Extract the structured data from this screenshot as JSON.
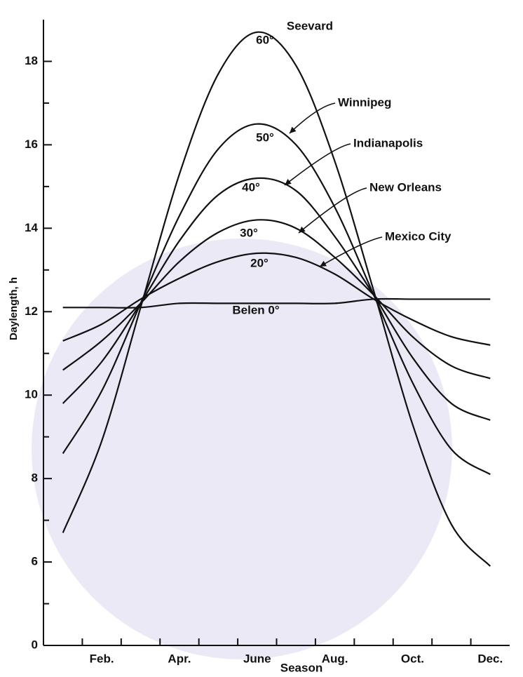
{
  "chart_data": {
    "type": "line",
    "x_label": "Season",
    "y_label": "Daylength, h",
    "categories": [
      null,
      "Feb.",
      null,
      "Apr.",
      null,
      "June",
      null,
      "Aug.",
      null,
      "Oct.",
      null,
      "Dec."
    ],
    "ylim": [
      4,
      19
    ],
    "yticks": [
      6,
      8,
      10,
      12,
      14,
      16,
      18
    ],
    "yminorticks": [
      5,
      7,
      9,
      11,
      13,
      15,
      17
    ],
    "axis_origin_label": "0",
    "series": [
      {
        "name": "60°",
        "city": "Seevard",
        "color": "#111111",
        "values": [
          6.7,
          8.9,
          12.1,
          15.3,
          17.7,
          18.7,
          17.9,
          15.6,
          12.5,
          9.3,
          6.9,
          5.9
        ]
      },
      {
        "name": "50°",
        "city": "Winnipeg",
        "color": "#111111",
        "values": [
          8.6,
          10.1,
          12.2,
          14.3,
          15.9,
          16.5,
          16.0,
          14.5,
          12.4,
          10.3,
          8.7,
          8.1
        ]
      },
      {
        "name": "40°",
        "city": "Indianapolis",
        "color": "#111111",
        "values": [
          9.8,
          10.8,
          12.2,
          13.7,
          14.8,
          15.2,
          14.9,
          13.8,
          12.4,
          10.9,
          9.8,
          9.4
        ]
      },
      {
        "name": "30°",
        "city": "New Orleans",
        "color": "#111111",
        "values": [
          10.6,
          11.3,
          12.2,
          13.2,
          13.9,
          14.2,
          14.0,
          13.3,
          12.4,
          11.4,
          10.7,
          10.4
        ]
      },
      {
        "name": "20°",
        "city": "Mexico City",
        "color": "#111111",
        "values": [
          11.3,
          11.7,
          12.3,
          12.8,
          13.2,
          13.4,
          13.3,
          12.9,
          12.3,
          11.8,
          11.4,
          11.2
        ]
      },
      {
        "name": "Belen 0°",
        "color": "#111111",
        "values": [
          12.1,
          12.1,
          12.1,
          12.2,
          12.2,
          12.2,
          12.2,
          12.2,
          12.3,
          12.3,
          12.3,
          12.3
        ]
      }
    ]
  }
}
